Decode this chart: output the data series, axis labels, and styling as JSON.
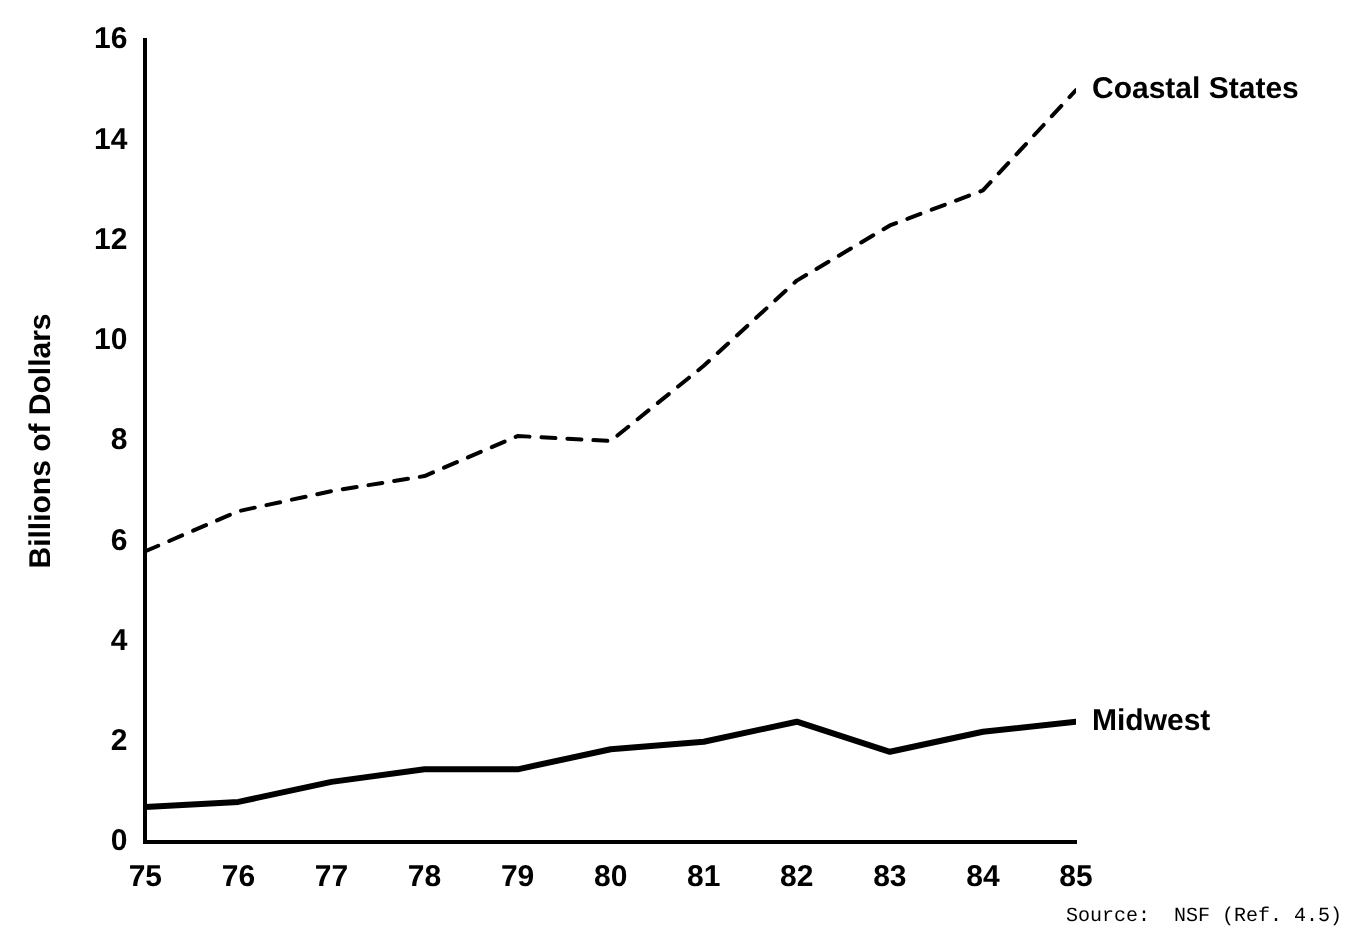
{
  "chart_data": {
    "type": "line",
    "ylabel": "Billions of Dollars",
    "x": [
      75,
      76,
      77,
      78,
      79,
      80,
      81,
      82,
      83,
      84,
      85
    ],
    "xlim": [
      75,
      85
    ],
    "xticks": [
      75,
      76,
      77,
      78,
      79,
      80,
      81,
      82,
      83,
      84,
      85
    ],
    "ylim": [
      0,
      16
    ],
    "yticks": [
      0,
      2,
      4,
      6,
      8,
      10,
      12,
      14,
      16
    ],
    "series": [
      {
        "name": "Coastal States",
        "color": "#000000",
        "line_style": "dashed",
        "values": [
          5.8,
          6.6,
          7.0,
          7.3,
          8.1,
          8.0,
          9.5,
          11.2,
          12.3,
          13.0,
          15.0
        ]
      },
      {
        "name": "Midwest",
        "color": "#000000",
        "line_style": "solid",
        "values": [
          0.7,
          0.8,
          1.2,
          1.45,
          1.45,
          1.85,
          2.0,
          2.4,
          1.8,
          2.2,
          2.4
        ]
      }
    ],
    "annotations": [
      "Source:  NSF (Ref. 4.5)"
    ]
  }
}
